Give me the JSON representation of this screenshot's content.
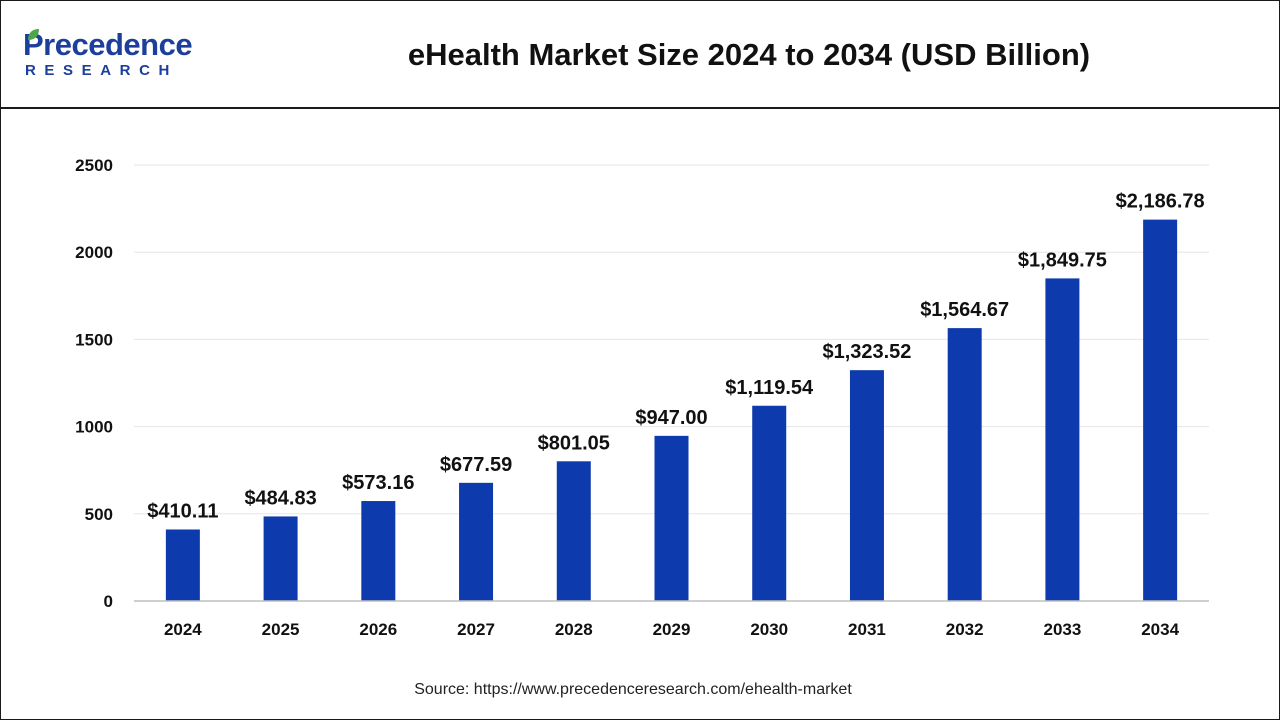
{
  "header": {
    "logo_main": "Precedence",
    "logo_sub": "RESEARCH",
    "title": "eHealth Market Size 2024 to 2034 (USD Billion)"
  },
  "source": "Source: https://www.precedenceresearch.com/ehealth-market",
  "colors": {
    "bar": "#0d3aad",
    "brand": "#1d3f9c",
    "grid": "#e6e6e6",
    "axis": "#bfbfbf",
    "text": "#111111"
  },
  "chart_data": {
    "type": "bar",
    "title": "eHealth Market Size 2024 to 2034 (USD Billion)",
    "xlabel": "",
    "ylabel": "",
    "categories": [
      "2024",
      "2025",
      "2026",
      "2027",
      "2028",
      "2029",
      "2030",
      "2031",
      "2032",
      "2033",
      "2034"
    ],
    "values": [
      410.11,
      484.83,
      573.16,
      677.59,
      801.05,
      947.0,
      1119.54,
      1323.52,
      1564.67,
      1849.75,
      2186.78
    ],
    "data_labels": [
      "$410.11",
      "$484.83",
      "$573.16",
      "$677.59",
      "$801.05",
      "$947.00",
      "$1,119.54",
      "$1,323.52",
      "$1,564.67",
      "$1,849.75",
      "$2,186.78"
    ],
    "ylim": [
      0,
      2500
    ],
    "yticks": [
      0,
      500,
      1000,
      1500,
      2000,
      2500
    ],
    "grid": true,
    "legend": "none"
  }
}
